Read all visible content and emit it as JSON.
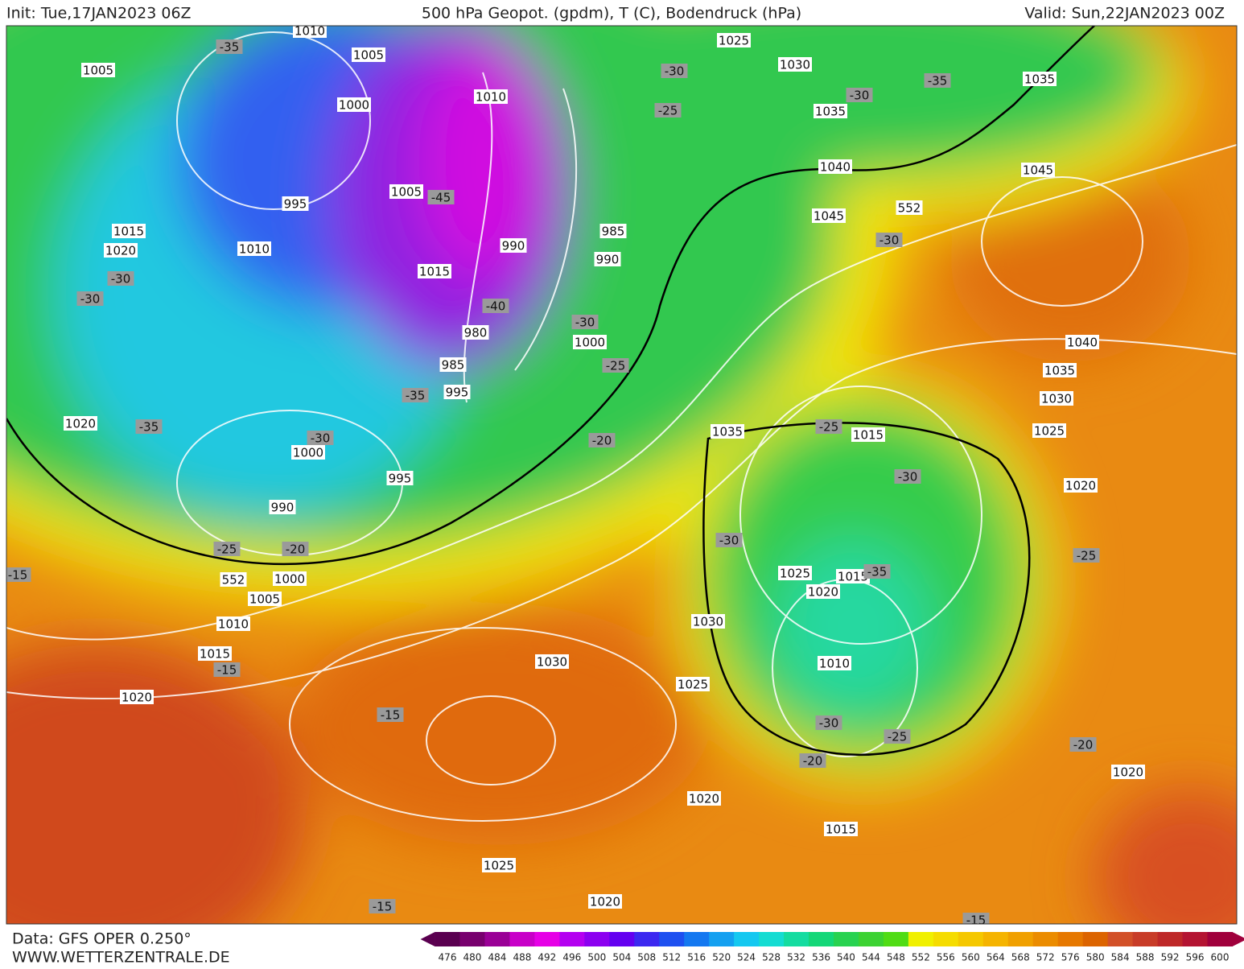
{
  "header": {
    "init": "Init: Tue,17JAN2023 06Z",
    "title": "500 hPa Geopot. (gpdm), T (C), Bodendruck (hPa)",
    "valid": "Valid: Sun,22JAN2023 00Z"
  },
  "footer": {
    "source": "Data: GFS OPER 0.250°",
    "website": "WWW.WETTERZENTRALE.DE"
  },
  "colorbar": {
    "ticks": [
      476,
      480,
      484,
      488,
      492,
      496,
      500,
      504,
      508,
      512,
      516,
      520,
      524,
      528,
      532,
      536,
      540,
      544,
      548,
      552,
      556,
      560,
      564,
      568,
      572,
      576,
      580,
      584,
      588,
      592,
      596,
      600
    ],
    "colors": [
      "#5a0050",
      "#78006e",
      "#9a0096",
      "#c800c8",
      "#e600e6",
      "#b400f0",
      "#8c00f0",
      "#6400f0",
      "#3c28f0",
      "#1e50f0",
      "#1478f0",
      "#14a0f0",
      "#14c8f0",
      "#14dcd2",
      "#14dca0",
      "#14d778",
      "#28d250",
      "#3cd232",
      "#50dc14",
      "#f0f000",
      "#f5dc00",
      "#f5c800",
      "#f5b400",
      "#f0a000",
      "#eb8c00",
      "#e67800",
      "#dc6400",
      "#d25028",
      "#c83c28",
      "#be2828",
      "#b41432",
      "#a0003c"
    ]
  },
  "map": {
    "pressure_labels": [
      "1010",
      "1005",
      "1005",
      "1000",
      "1010",
      "1025",
      "1030",
      "1035",
      "1035",
      "995",
      "1005",
      "985",
      "990",
      "990",
      "1015",
      "1020",
      "1010",
      "1015",
      "980",
      "1000",
      "985",
      "995",
      "1040",
      "1045",
      "552",
      "1045",
      "1040",
      "1035",
      "1030",
      "1025",
      "1020",
      "1020",
      "1000",
      "995",
      "990",
      "1035",
      "1015",
      "552",
      "1000",
      "1005",
      "1010",
      "1015",
      "1020",
      "1025",
      "1015",
      "1020",
      "1030",
      "1010",
      "1025",
      "1030",
      "1020",
      "1015",
      "1020",
      "1025",
      "1020"
    ],
    "temperature_labels": [
      "-35",
      "-30",
      "-25",
      "-35",
      "-30",
      "-45",
      "-40",
      "-30",
      "-25",
      "-35",
      "-30",
      "-30",
      "-35",
      "-30",
      "-20",
      "-30",
      "-25",
      "-30",
      "-30",
      "-35",
      "-25",
      "-20",
      "-15",
      "-15",
      "-25",
      "-15",
      "-30",
      "-25",
      "-20",
      "-20",
      "-15",
      "-15"
    ]
  }
}
